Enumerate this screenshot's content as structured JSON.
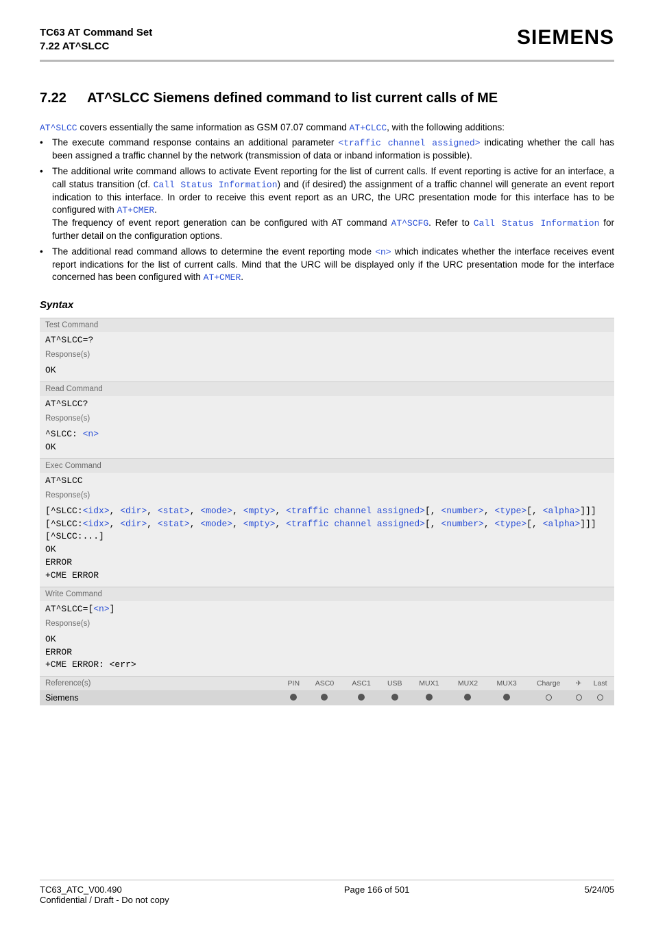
{
  "header": {
    "title": "TC63 AT Command Set",
    "subtitle": "7.22 AT^SLCC",
    "brand": "SIEMENS"
  },
  "section": {
    "number": "7.22",
    "title": "AT^SLCC   Siemens defined command to list current calls of ME"
  },
  "intro": {
    "lead_pre": "AT^SLCC",
    "lead_mid": " covers essentially the same information as GSM 07.07 command ",
    "lead_link": "AT+CLCC",
    "lead_post": ", with the following additions:"
  },
  "bullets": [
    {
      "segments": [
        {
          "t": "The execute command response contains an additional parameter "
        },
        {
          "t": "<traffic channel assigned>",
          "cls": "link"
        },
        {
          "t": " indicating whether the call has been assigned a traffic channel by the network (transmission of data or inband information is possible)."
        }
      ]
    },
    {
      "segments": [
        {
          "t": "The additional write command allows to activate Event reporting for the list of current calls. If event reporting is active for an interface, a call status transition (cf. "
        },
        {
          "t": "Call Status Information",
          "cls": "link"
        },
        {
          "t": ") and (if desired) the assignment of a traffic channel will generate an event report indication to this interface. In order to receive this event report as an URC, the URC presentation mode for this interface has to be configured with "
        },
        {
          "t": "AT+CMER",
          "cls": "link"
        },
        {
          "t": "."
        }
      ],
      "segments2": [
        {
          "t": "The frequency of event report generation can be configured with AT command "
        },
        {
          "t": "AT^SCFG",
          "cls": "link"
        },
        {
          "t": ". Refer to "
        },
        {
          "t": "Call Status Information",
          "cls": "link"
        },
        {
          "t": " for further detail on the configuration options."
        }
      ]
    },
    {
      "segments": [
        {
          "t": "The additional read command allows to determine the event reporting mode "
        },
        {
          "t": "<n>",
          "cls": "link"
        },
        {
          "t": " which indicates whether the interface receives event report indications for the list of current calls. Mind that the URC will be displayed only if the URC presentation mode for the interface concerned has been configured with "
        },
        {
          "t": "AT+CMER",
          "cls": "link"
        },
        {
          "t": "."
        }
      ]
    }
  ],
  "syntax_heading": "Syntax",
  "blocks": [
    {
      "label": "Test Command",
      "cmd": "AT^SLCC=?",
      "resp_label": "Response(s)",
      "resp_lines": [
        [
          {
            "t": "OK"
          }
        ]
      ]
    },
    {
      "label": "Read Command",
      "cmd": "AT^SLCC?",
      "resp_label": "Response(s)",
      "resp_lines": [
        [
          {
            "t": "^SLCC: "
          },
          {
            "t": "<n>",
            "cls": "link-plain"
          }
        ],
        [
          {
            "t": "OK"
          }
        ]
      ]
    },
    {
      "label": "Exec Command",
      "cmd": "AT^SLCC",
      "resp_label": "Response(s)",
      "resp_lines": [
        [
          {
            "t": "["
          },
          {
            "t": "^SLCC:"
          },
          {
            "t": "<idx>",
            "cls": "link-plain"
          },
          {
            "t": ", "
          },
          {
            "t": "<dir>",
            "cls": "link-plain"
          },
          {
            "t": ", "
          },
          {
            "t": "<stat>",
            "cls": "link-plain"
          },
          {
            "t": ", "
          },
          {
            "t": "<mode>",
            "cls": "link-plain"
          },
          {
            "t": ", "
          },
          {
            "t": "<mpty>",
            "cls": "link-plain"
          },
          {
            "t": ", "
          },
          {
            "t": "<traffic channel assigned>",
            "cls": "link-plain"
          },
          {
            "t": "[, "
          },
          {
            "t": "<number>",
            "cls": "link-plain"
          },
          {
            "t": ", "
          },
          {
            "t": "<type>",
            "cls": "link-plain"
          },
          {
            "t": "[, "
          },
          {
            "t": "<alpha>",
            "cls": "link-plain"
          },
          {
            "t": "]]]"
          }
        ],
        [
          {
            "t": "["
          },
          {
            "t": "^SLCC:"
          },
          {
            "t": "<idx>",
            "cls": "link-plain"
          },
          {
            "t": ", "
          },
          {
            "t": "<dir>",
            "cls": "link-plain"
          },
          {
            "t": ", "
          },
          {
            "t": "<stat>",
            "cls": "link-plain"
          },
          {
            "t": ", "
          },
          {
            "t": "<mode>",
            "cls": "link-plain"
          },
          {
            "t": ", "
          },
          {
            "t": "<mpty>",
            "cls": "link-plain"
          },
          {
            "t": ", "
          },
          {
            "t": "<traffic channel assigned>",
            "cls": "link-plain"
          },
          {
            "t": "[, "
          },
          {
            "t": "<number>",
            "cls": "link-plain"
          },
          {
            "t": ", "
          },
          {
            "t": "<type>",
            "cls": "link-plain"
          },
          {
            "t": "[, "
          },
          {
            "t": "<alpha>",
            "cls": "link-plain"
          },
          {
            "t": "]]]"
          }
        ],
        [
          {
            "t": "[^SLCC:...]"
          }
        ],
        [
          {
            "t": "OK"
          }
        ],
        [
          {
            "t": "ERROR"
          }
        ],
        [
          {
            "t": "+CME ERROR"
          }
        ]
      ]
    },
    {
      "label": "Write Command",
      "cmd_segments": [
        {
          "t": "AT^SLCC=["
        },
        {
          "t": "<n>",
          "cls": "link-plain"
        },
        {
          "t": "]"
        }
      ],
      "resp_label": "Response(s)",
      "resp_lines": [
        [
          {
            "t": "OK"
          }
        ],
        [
          {
            "t": "ERROR"
          }
        ],
        [
          {
            "t": "+CME ERROR: <err>"
          }
        ]
      ]
    }
  ],
  "ref": {
    "label": "Reference(s)",
    "cols": [
      "PIN",
      "ASC0",
      "ASC1",
      "USB",
      "MUX1",
      "MUX2",
      "MUX3",
      "Charge",
      "✈",
      "Last"
    ],
    "row_label": "Siemens",
    "dots": [
      "f",
      "f",
      "f",
      "f",
      "f",
      "f",
      "f",
      "e",
      "e",
      "e"
    ]
  },
  "footer": {
    "left1": "TC63_ATC_V00.490",
    "left2": "Confidential / Draft - Do not copy",
    "center": "Page 166 of 501",
    "right": "5/24/05"
  }
}
